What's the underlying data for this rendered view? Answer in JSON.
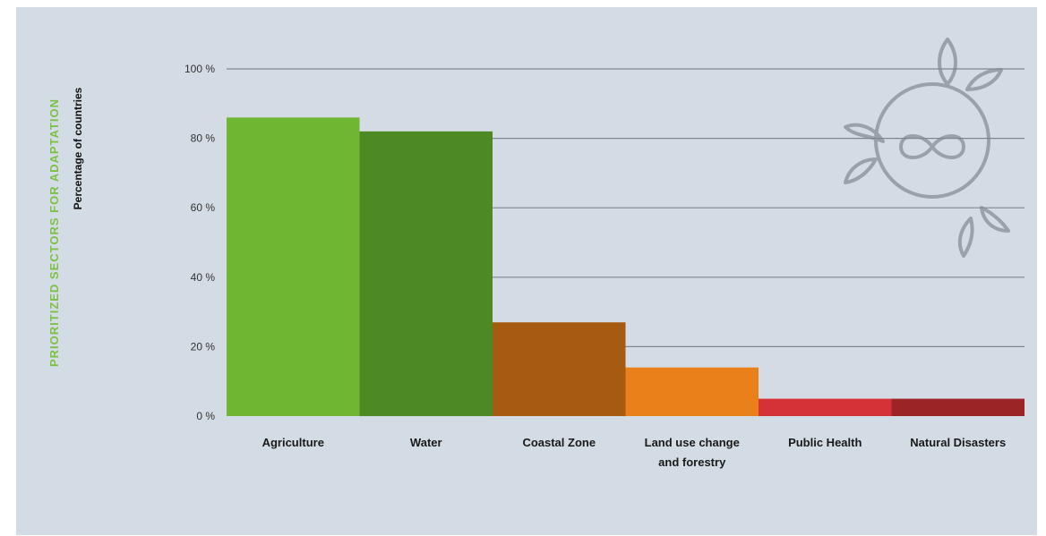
{
  "chart_data": {
    "type": "bar",
    "title": "PRIORITIZED SECTORS FOR ADAPTATION",
    "ylabel": "Percentage of countries",
    "xlabel": "",
    "ylim": [
      0,
      100
    ],
    "y_ticks": [
      "0 %",
      "20 %",
      "40 %",
      "60 %",
      "80 %",
      "100 %"
    ],
    "y_tick_values": [
      0,
      20,
      40,
      60,
      80,
      100
    ],
    "categories": [
      "Agriculture",
      "Water",
      "Coastal Zone",
      "Land use change and forestry",
      "Public Health",
      "Natural Disasters"
    ],
    "category_lines": [
      [
        "Agriculture"
      ],
      [
        "Water"
      ],
      [
        "Coastal Zone"
      ],
      [
        "Land use change",
        "and forestry"
      ],
      [
        "Public Health"
      ],
      [
        "Natural Disasters"
      ]
    ],
    "values": [
      86,
      82,
      27,
      14,
      5,
      5
    ],
    "bar_colors": [
      "#6fb732",
      "#4e8a23",
      "#a75b10",
      "#e9801a",
      "#d53238",
      "#9b2427"
    ],
    "grid": true,
    "legend": "none"
  },
  "colors": {
    "panel_background": "#d3dbe4",
    "title": "#7cc242",
    "gridline": "#7e8790",
    "logo_stroke": "#9aa1a8"
  },
  "icons": {
    "logo": "circle-infinity-leaves-icon"
  }
}
